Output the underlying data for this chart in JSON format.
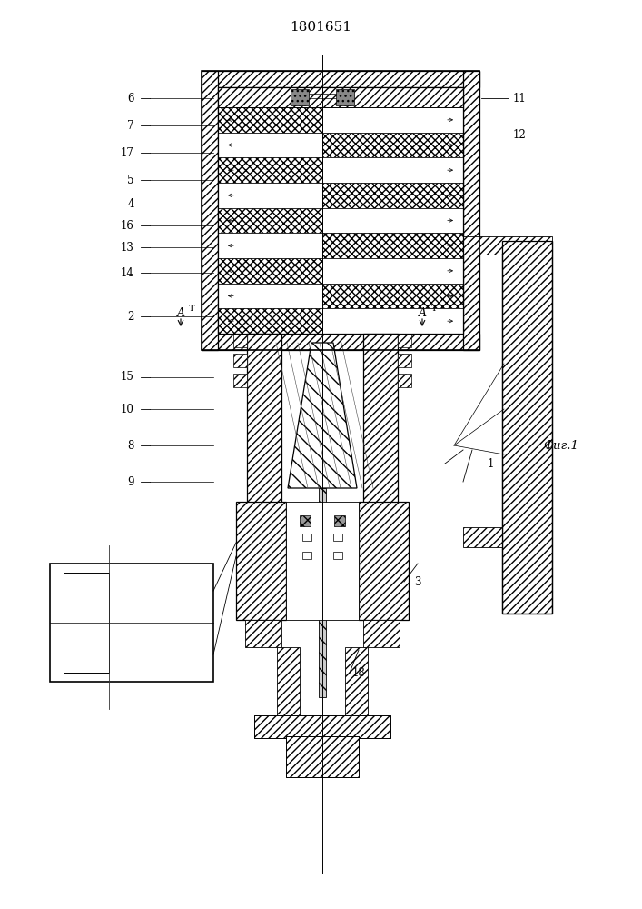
{
  "title": "1801651",
  "title_fontsize": 11,
  "fig_label": "Фиг.1",
  "left_labels": [
    [
      "6",
      108
    ],
    [
      "7",
      138
    ],
    [
      "17",
      168
    ],
    [
      "5",
      198
    ],
    [
      "4",
      225
    ],
    [
      "16",
      248
    ],
    [
      "13",
      272
    ],
    [
      "14",
      300
    ],
    [
      "2",
      348
    ],
    [
      "15",
      415
    ],
    [
      "10",
      450
    ],
    [
      "8",
      490
    ],
    [
      "9",
      530
    ]
  ],
  "right_labels": [
    [
      "11",
      108
    ],
    [
      "12",
      148
    ]
  ],
  "bottom_labels": [
    [
      "1",
      540,
      510
    ],
    [
      "3",
      460,
      640
    ],
    [
      "18",
      395,
      740
    ]
  ]
}
